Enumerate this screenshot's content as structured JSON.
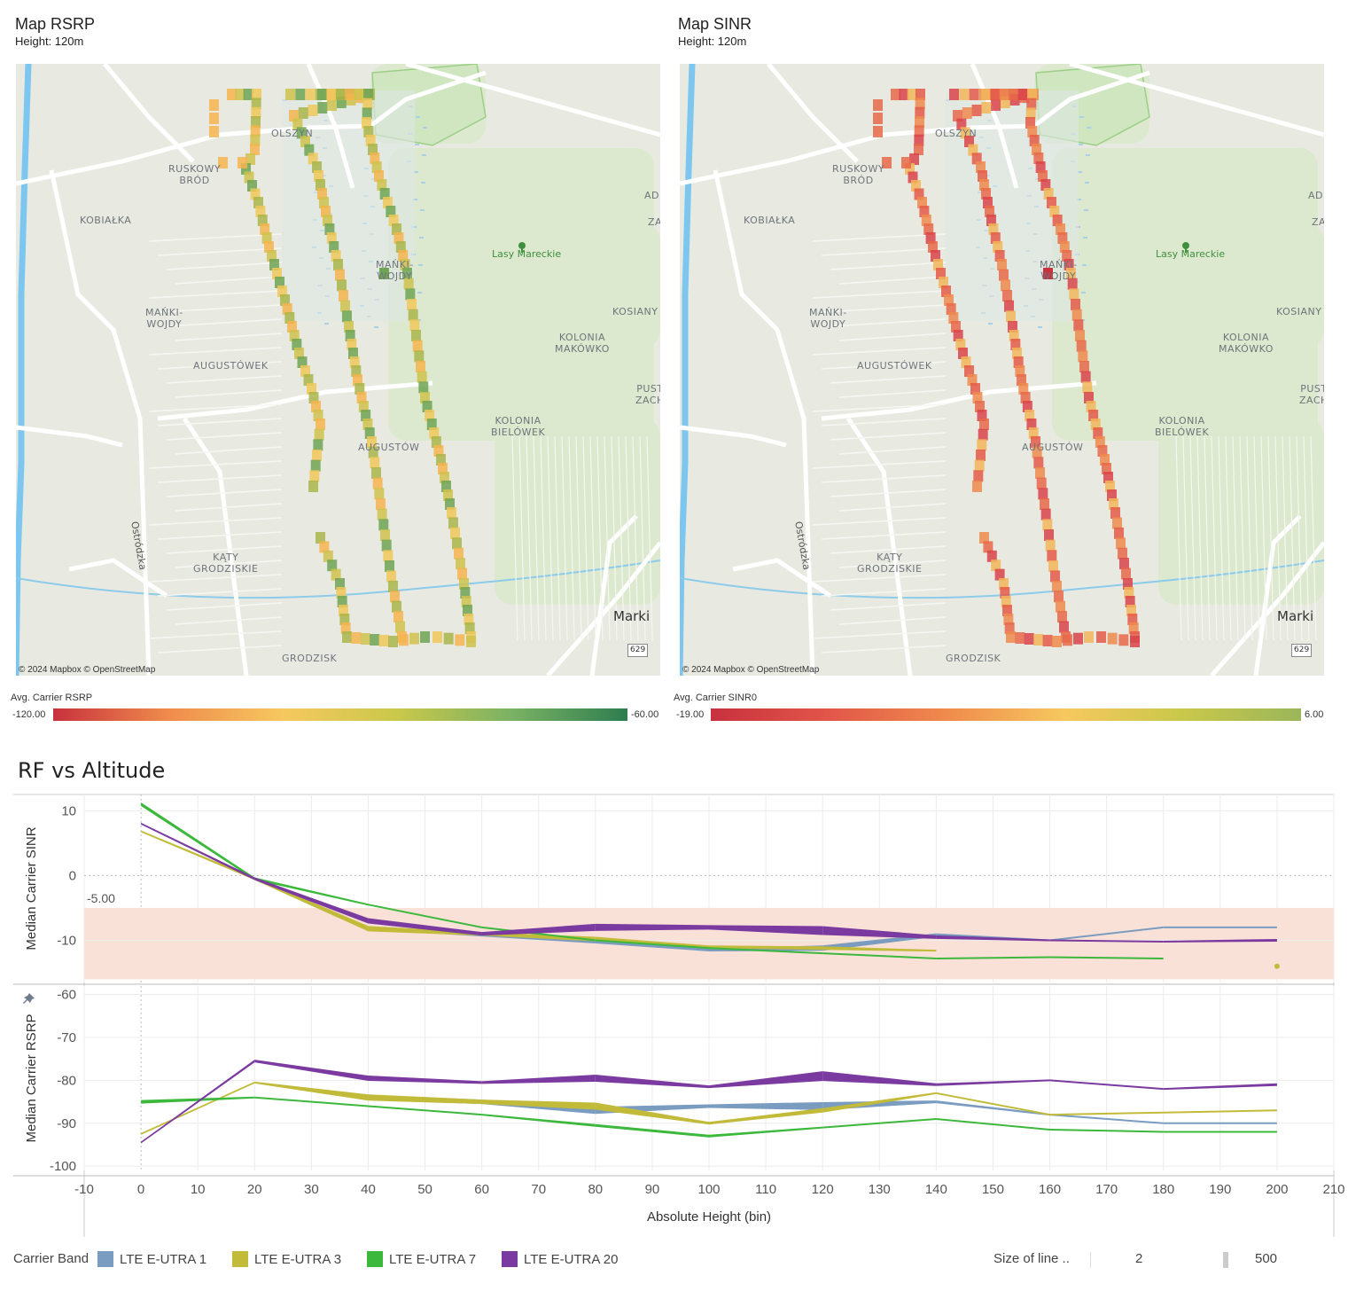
{
  "maps": [
    {
      "id": "rsrp",
      "title": "Map RSRP",
      "subtitle": "Height: 120m",
      "attribution": "© 2024 Mapbox © OpenStreetMap",
      "legend_title": "Avg. Carrier RSRP",
      "legend_min": "-120.00",
      "legend_max": "-60.00",
      "gradient": [
        "#c8313e",
        "#ef8b4c",
        "#f6c85f",
        "#c9c84a",
        "#7ab164",
        "#2e7d4f"
      ],
      "bin_palette": [
        "#f4b44f",
        "#f0c85a",
        "#cfc24c",
        "#a9b54a",
        "#6ea555"
      ],
      "highlight": "#6ea555"
    },
    {
      "id": "sinr",
      "title": "Map SINR",
      "subtitle": "Height: 120m",
      "attribution": "© 2024 Mapbox © OpenStreetMap",
      "legend_title": "Avg. Carrier SINR0",
      "legend_min": "-19.00",
      "legend_max": "6.00",
      "gradient": [
        "#c8313e",
        "#e2564a",
        "#ef8b4c",
        "#f6c85f",
        "#c9c84a",
        "#9bb65a"
      ],
      "bin_palette": [
        "#e8694a",
        "#e45a48",
        "#d9444a",
        "#ee8a4e",
        "#f2b65a"
      ],
      "highlight": "#c8313e"
    }
  ],
  "map_places": [
    {
      "name": "OLSZYN",
      "cls": "olsz"
    },
    {
      "name": "RUSKOWY\nBRÓD",
      "cls": "rusk"
    },
    {
      "name": "KOBIAŁKA",
      "cls": "kobi"
    },
    {
      "name": "MAŃKI-\nWOJDY",
      "cls": "mank1"
    },
    {
      "name": "MAŃKI-\nWOJDY",
      "cls": "mank2"
    },
    {
      "name": "AUGUSTÓWEK",
      "cls": "augk"
    },
    {
      "name": "AUGUSTÓW",
      "cls": "augw"
    },
    {
      "name": "KĄTY\nGRODZISKIE",
      "cls": "katy"
    },
    {
      "name": "GRODZISK",
      "cls": "grod"
    },
    {
      "name": "Lasy Mareckie",
      "cls": "lasy"
    },
    {
      "name": "KOSIANY",
      "cls": "kosi"
    },
    {
      "name": "KOLONIA\nMAKÓWKO",
      "cls": "kmak"
    },
    {
      "name": "KOLONIA\nBIELÓWEK",
      "cls": "kbie"
    },
    {
      "name": "PUST\nZACH",
      "cls": "pust"
    },
    {
      "name": "ADI",
      "cls": "adi"
    },
    {
      "name": "ZA",
      "cls": "za"
    },
    {
      "name": "Marki",
      "cls": "marki"
    },
    {
      "name": "Ostródzka",
      "cls": "ostr"
    },
    {
      "name": "629",
      "cls": "r629"
    }
  ],
  "section_title": "RF vs Altitude",
  "chart_data": {
    "type": "line",
    "title": "RF vs Altitude",
    "xlabel": "Absolute Height (bin)",
    "xlim": [
      -10,
      210
    ],
    "x_ticks": [
      "-10",
      "0",
      "10",
      "20",
      "30",
      "40",
      "50",
      "60",
      "70",
      "80",
      "90",
      "100",
      "110",
      "120",
      "130",
      "140",
      "150",
      "160",
      "170",
      "180",
      "190",
      "200",
      "210"
    ],
    "panels": [
      {
        "ylabel": "Median Carrier SINR",
        "ylim": [
          -16.5,
          12.5
        ],
        "y_ticks": [
          "10",
          "0",
          "-10"
        ],
        "reference_band": {
          "from": -5,
          "to": -16,
          "label": "-5.00",
          "color": "#f9e1d8"
        },
        "series": [
          {
            "name": "LTE E-UTRA 1",
            "color": "#7a9cc0",
            "x": [
              40,
              80,
              100,
              120,
              140,
              160,
              180,
              200
            ],
            "y": [
              -8.2,
              -10.2,
              -11.5,
              -11.2,
              -9.2,
              -10,
              -8,
              -8
            ],
            "w": [
              2,
              4,
              3,
              6,
              4,
              2,
              2,
              2
            ]
          },
          {
            "name": "LTE E-UTRA 3",
            "color": "#c2bb3a",
            "x": [
              0,
              20,
              40,
              60,
              80,
              100,
              120,
              140
            ],
            "y": [
              6.8,
              -0.5,
              -8.2,
              -9,
              -9.8,
              -11,
              -11.2,
              -11.6
            ],
            "w": [
              2,
              3,
              6,
              4,
              5,
              3,
              4,
              2
            ]
          },
          {
            "name": "LTE E-UTRA 7",
            "color": "#3cb83c",
            "x": [
              0,
              20,
              40,
              60,
              80,
              100,
              120,
              140,
              160,
              180
            ],
            "y": [
              11,
              -0.5,
              -4.5,
              -8,
              -10,
              -11.2,
              -12,
              -12.8,
              -12.6,
              -12.8
            ],
            "w": [
              4,
              3,
              2,
              2,
              2,
              2,
              2,
              2,
              2,
              2
            ]
          },
          {
            "name": "LTE E-UTRA 20",
            "color": "#7b3aa0",
            "x": [
              0,
              20,
              40,
              60,
              80,
              100,
              120,
              140,
              160,
              180,
              200
            ],
            "y": [
              8,
              -0.5,
              -7,
              -9,
              -8,
              -8,
              -8.5,
              -9.5,
              -10,
              -10.2,
              -10
            ],
            "w": [
              2,
              3,
              6,
              4,
              8,
              5,
              10,
              4,
              2,
              2,
              3
            ]
          }
        ],
        "points": [
          {
            "x": 200,
            "y": -14,
            "color": "#c2bb3a"
          }
        ]
      },
      {
        "ylabel": "Median Carrier RSRP",
        "ylim": [
          -101,
          -58
        ],
        "y_ticks": [
          "-60",
          "-70",
          "-80",
          "-90",
          "-100"
        ],
        "series": [
          {
            "name": "LTE E-UTRA 1",
            "color": "#7a9cc0",
            "x": [
              40,
              60,
              80,
              100,
              120,
              140,
              160,
              180,
              200
            ],
            "y": [
              -84,
              -85,
              -87,
              -86,
              -86,
              -85,
              -88,
              -90,
              -90
            ],
            "w": [
              6,
              5,
              8,
              4,
              9,
              3,
              2,
              2,
              2
            ]
          },
          {
            "name": "LTE E-UTRA 3",
            "color": "#c2bb3a",
            "x": [
              0,
              20,
              40,
              60,
              80,
              100,
              120,
              140,
              160,
              180,
              200
            ],
            "y": [
              -92.5,
              -80.5,
              -84,
              -85,
              -86,
              -90,
              -87,
              -83,
              -88,
              -87.5,
              -87
            ],
            "w": [
              2,
              2,
              7,
              5,
              8,
              3,
              5,
              2,
              2,
              2,
              2
            ]
          },
          {
            "name": "LTE E-UTRA 7",
            "color": "#3cb83c",
            "x": [
              0,
              20,
              40,
              60,
              80,
              100,
              120,
              140,
              160,
              180,
              200
            ],
            "y": [
              -85,
              -84,
              -86,
              -88,
              -90.5,
              -93,
              -91,
              -89,
              -91.5,
              -92,
              -92
            ],
            "w": [
              4,
              2,
              2,
              2,
              3,
              3,
              2,
              2,
              2,
              2,
              2
            ]
          },
          {
            "name": "LTE E-UTRA 20",
            "color": "#7b3aa0",
            "x": [
              0,
              20,
              40,
              60,
              80,
              100,
              120,
              140,
              160,
              180,
              200
            ],
            "y": [
              -94.5,
              -75.5,
              -79.5,
              -80.5,
              -79.5,
              -81.5,
              -79,
              -81,
              -80,
              -82,
              -81
            ],
            "w": [
              2,
              3,
              6,
              3,
              8,
              3,
              11,
              3,
              2,
              2,
              3
            ]
          }
        ]
      }
    ]
  },
  "legend": {
    "title": "Carrier Band",
    "items": [
      {
        "label": "LTE E-UTRA 1",
        "color": "#7a9cc0"
      },
      {
        "label": "LTE E-UTRA 3",
        "color": "#c2bb3a"
      },
      {
        "label": "LTE E-UTRA 7",
        "color": "#3cb83c"
      },
      {
        "label": "LTE E-UTRA 20",
        "color": "#7b3aa0"
      }
    ],
    "size_title": "Size of line ..",
    "size_min": "2",
    "size_max": "500"
  },
  "icons": {
    "pin": "pin-icon",
    "tree": "tree-icon"
  }
}
